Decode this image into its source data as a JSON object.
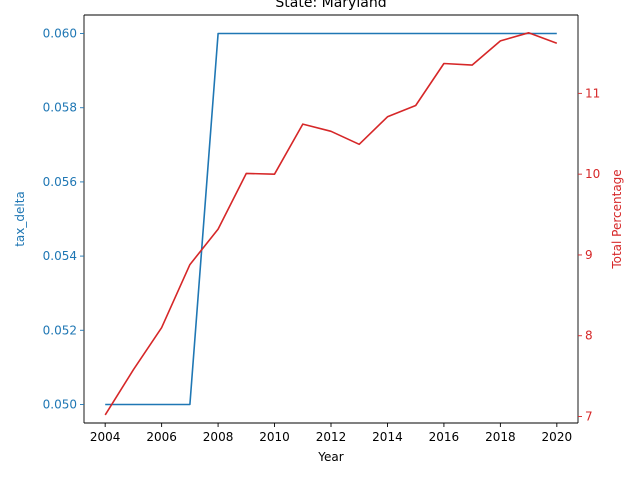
{
  "chart_data": {
    "type": "line",
    "title": "State: Maryland",
    "xlabel": "Year",
    "xlim": [
      2003.25,
      2020.75
    ],
    "xticks": [
      2004,
      2006,
      2008,
      2010,
      2012,
      2014,
      2016,
      2018,
      2020
    ],
    "x": [
      2004,
      2005,
      2006,
      2007,
      2008,
      2009,
      2010,
      2011,
      2012,
      2013,
      2014,
      2015,
      2016,
      2017,
      2018,
      2019,
      2020
    ],
    "grid": false,
    "legend": "none",
    "axes": {
      "left": {
        "label": "tax_delta",
        "color": "#1f77b4",
        "ylim": [
          0.0495,
          0.0605
        ],
        "ticks": [
          "0.050",
          "0.052",
          "0.054",
          "0.056",
          "0.058",
          "0.060"
        ]
      },
      "right": {
        "label": "Total Percentage",
        "color": "#d62728",
        "ylim": [
          6.92,
          11.97
        ],
        "ticks": [
          "7",
          "8",
          "9",
          "10",
          "11"
        ]
      }
    },
    "series": [
      {
        "axis": "left",
        "color": "#1f77b4",
        "values": [
          0.05,
          0.05,
          0.05,
          0.05,
          0.06,
          0.06,
          0.06,
          0.06,
          0.06,
          0.06,
          0.06,
          0.06,
          0.06,
          0.06,
          0.06,
          0.06,
          0.06
        ]
      },
      {
        "axis": "right",
        "color": "#d62728",
        "values": [
          7.02,
          7.58,
          8.1,
          8.88,
          9.32,
          10.01,
          10.0,
          10.62,
          10.53,
          10.37,
          10.71,
          10.85,
          11.37,
          11.35,
          11.65,
          11.75,
          11.62
        ]
      }
    ]
  }
}
